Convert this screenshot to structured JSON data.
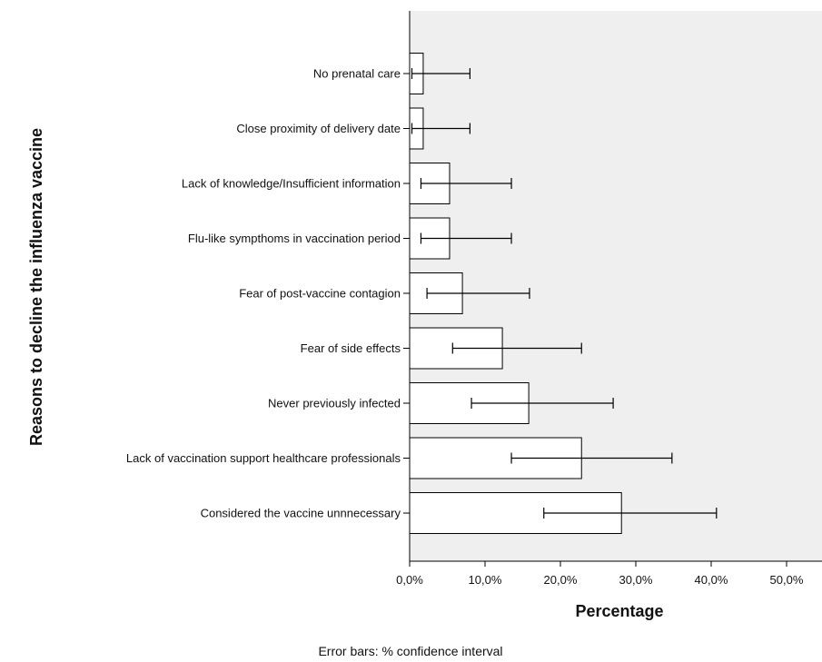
{
  "chart_data": {
    "type": "bar",
    "orientation": "horizontal",
    "categories": [
      "No prenatal care",
      "Close proximity of delivery date",
      "Lack of knowledge/Insufficient information",
      "Flu-like sympthoms in vaccination period",
      "Fear of post-vaccine contagion",
      "Fear of side effects",
      "Never previously infected",
      "Lack of vaccination support healthcare professionals",
      "Considered the vaccine unnnecessary"
    ],
    "values": [
      1.8,
      1.8,
      5.3,
      5.3,
      7.0,
      12.3,
      15.8,
      22.8,
      28.1
    ],
    "error_low": [
      0.3,
      0.3,
      1.5,
      1.5,
      2.3,
      5.7,
      8.2,
      13.5,
      17.8
    ],
    "error_high": [
      8.0,
      8.0,
      13.5,
      13.5,
      15.9,
      22.8,
      27.0,
      34.8,
      40.7
    ],
    "xlabel": "Percentage",
    "ylabel": "Reasons to decline the influenza vaccine",
    "xlim": [
      0,
      54.7
    ],
    "xticks": [
      0,
      10,
      20,
      30,
      40,
      50
    ],
    "xtick_labels": [
      "0,0%",
      "10,0%",
      "20,0%",
      "30,0%",
      "40,0%",
      "50,0%"
    ],
    "footnote": "Error bars: % confidence interval",
    "plot_background": "#efefef",
    "bar_fill": "#ffffff",
    "grid": false
  }
}
